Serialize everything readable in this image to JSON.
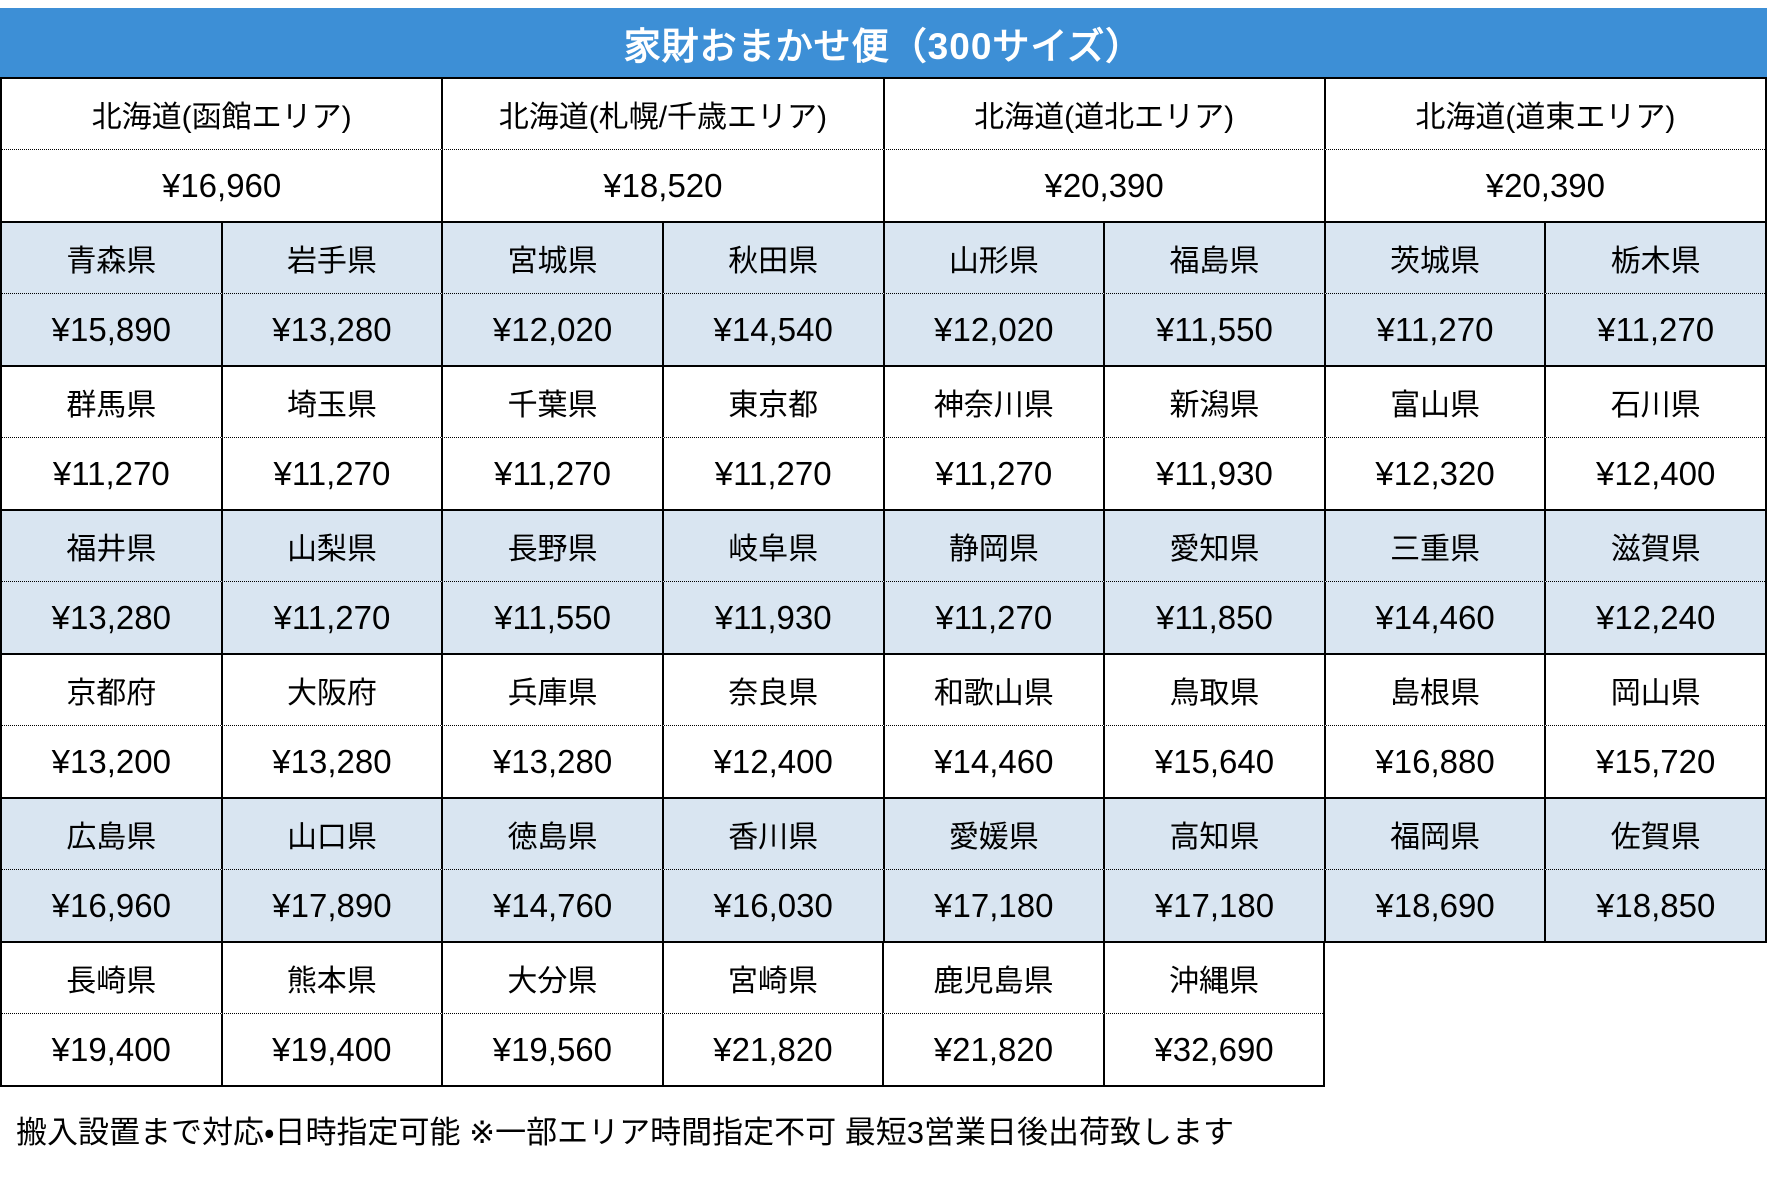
{
  "title": "家財おまかせ便（300サイズ）",
  "footer": "搬入設置まで対応・日時指定可能 ※一部エリア時間指定不可 最短3営業日後出荷致します",
  "colors": {
    "header_bg": "#3d8fd6",
    "header_text": "#ffffff",
    "shaded_row_bg": "#d9e5f1",
    "row_bg": "#ffffff",
    "border": "#000000",
    "text": "#000000"
  },
  "hokkaido": {
    "shaded": false,
    "cols": 4,
    "cells": [
      {
        "name": "北海道(函館エリア)",
        "price": "¥16,960"
      },
      {
        "name": "北海道(札幌/千歳エリア)",
        "price": "¥18,520"
      },
      {
        "name": "北海道(道北エリア)",
        "price": "¥20,390"
      },
      {
        "name": "北海道(道東エリア)",
        "price": "¥20,390"
      }
    ]
  },
  "groups": [
    {
      "shaded": true,
      "cols": 8,
      "cells": [
        {
          "name": "青森県",
          "price": "¥15,890"
        },
        {
          "name": "岩手県",
          "price": "¥13,280"
        },
        {
          "name": "宮城県",
          "price": "¥12,020"
        },
        {
          "name": "秋田県",
          "price": "¥14,540"
        },
        {
          "name": "山形県",
          "price": "¥12,020"
        },
        {
          "name": "福島県",
          "price": "¥11,550"
        },
        {
          "name": "茨城県",
          "price": "¥11,270"
        },
        {
          "name": "栃木県",
          "price": "¥11,270"
        }
      ]
    },
    {
      "shaded": false,
      "cols": 8,
      "cells": [
        {
          "name": "群馬県",
          "price": "¥11,270"
        },
        {
          "name": "埼玉県",
          "price": "¥11,270"
        },
        {
          "name": "千葉県",
          "price": "¥11,270"
        },
        {
          "name": "東京都",
          "price": "¥11,270"
        },
        {
          "name": "神奈川県",
          "price": "¥11,270"
        },
        {
          "name": "新潟県",
          "price": "¥11,930"
        },
        {
          "name": "富山県",
          "price": "¥12,320"
        },
        {
          "name": "石川県",
          "price": "¥12,400"
        }
      ]
    },
    {
      "shaded": true,
      "cols": 8,
      "cells": [
        {
          "name": "福井県",
          "price": "¥13,280"
        },
        {
          "name": "山梨県",
          "price": "¥11,270"
        },
        {
          "name": "長野県",
          "price": "¥11,550"
        },
        {
          "name": "岐阜県",
          "price": "¥11,930"
        },
        {
          "name": "静岡県",
          "price": "¥11,270"
        },
        {
          "name": "愛知県",
          "price": "¥11,850"
        },
        {
          "name": "三重県",
          "price": "¥14,460"
        },
        {
          "name": "滋賀県",
          "price": "¥12,240"
        }
      ]
    },
    {
      "shaded": false,
      "cols": 8,
      "cells": [
        {
          "name": "京都府",
          "price": "¥13,200"
        },
        {
          "name": "大阪府",
          "price": "¥13,280"
        },
        {
          "name": "兵庫県",
          "price": "¥13,280"
        },
        {
          "name": "奈良県",
          "price": "¥12,400"
        },
        {
          "name": "和歌山県",
          "price": "¥14,460"
        },
        {
          "name": "鳥取県",
          "price": "¥15,640"
        },
        {
          "name": "島根県",
          "price": "¥16,880"
        },
        {
          "name": "岡山県",
          "price": "¥15,720"
        }
      ]
    },
    {
      "shaded": true,
      "cols": 8,
      "cells": [
        {
          "name": "広島県",
          "price": "¥16,960"
        },
        {
          "name": "山口県",
          "price": "¥17,890"
        },
        {
          "name": "徳島県",
          "price": "¥14,760"
        },
        {
          "name": "香川県",
          "price": "¥16,030"
        },
        {
          "name": "愛媛県",
          "price": "¥17,180"
        },
        {
          "name": "高知県",
          "price": "¥17,180"
        },
        {
          "name": "福岡県",
          "price": "¥18,690"
        },
        {
          "name": "佐賀県",
          "price": "¥18,850"
        }
      ]
    },
    {
      "shaded": false,
      "cols": 6,
      "cells": [
        {
          "name": "長崎県",
          "price": "¥19,400"
        },
        {
          "name": "熊本県",
          "price": "¥19,400"
        },
        {
          "name": "大分県",
          "price": "¥19,560"
        },
        {
          "name": "宮崎県",
          "price": "¥21,820"
        },
        {
          "name": "鹿児島県",
          "price": "¥21,820"
        },
        {
          "name": "沖縄県",
          "price": "¥32,690"
        }
      ]
    }
  ]
}
